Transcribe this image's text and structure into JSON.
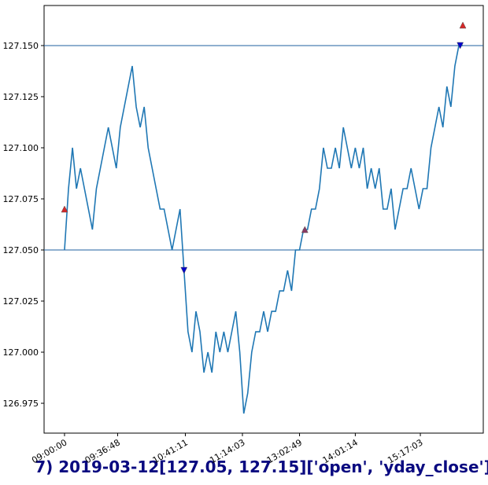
{
  "chart_data": {
    "type": "line",
    "title": "7) 2019-03-12[127.05, 127.15]['open', 'yday_close']",
    "x": [
      0,
      3,
      6,
      9,
      12,
      15,
      18,
      21,
      24,
      27,
      30,
      33,
      36,
      39,
      42,
      45,
      48,
      51,
      54,
      57,
      60,
      63,
      66,
      69,
      72,
      75,
      78,
      81,
      84,
      87,
      90,
      93,
      96,
      99,
      102,
      105,
      108,
      111,
      114,
      117,
      120,
      123,
      126,
      129,
      132,
      135,
      138,
      141,
      144,
      147,
      150,
      153,
      156,
      159,
      162,
      165,
      168,
      171,
      174,
      177,
      180,
      183,
      186,
      189,
      192,
      195,
      198,
      201,
      204,
      207,
      210,
      213,
      216,
      219,
      222,
      225,
      228,
      231,
      234,
      237,
      240,
      243,
      246,
      249,
      252,
      255,
      258,
      261,
      264,
      267,
      270,
      273,
      276,
      279,
      282,
      285,
      288,
      291,
      294,
      297,
      300
    ],
    "series": [
      {
        "color": "#1f77b4",
        "values": [
          127.05,
          127.08,
          127.1,
          127.08,
          127.09,
          127.08,
          127.07,
          127.06,
          127.08,
          127.09,
          127.1,
          127.11,
          127.1,
          127.09,
          127.11,
          127.12,
          127.13,
          127.14,
          127.12,
          127.11,
          127.12,
          127.1,
          127.09,
          127.08,
          127.07,
          127.07,
          127.06,
          127.05,
          127.06,
          127.07,
          127.04,
          127.01,
          127.0,
          127.02,
          127.01,
          126.99,
          127.0,
          126.99,
          127.01,
          127.0,
          127.01,
          127.0,
          127.01,
          127.02,
          127.0,
          126.97,
          126.98,
          127.0,
          127.01,
          127.01,
          127.02,
          127.01,
          127.02,
          127.02,
          127.03,
          127.03,
          127.04,
          127.03,
          127.05,
          127.05,
          127.06,
          127.06,
          127.07,
          127.07,
          127.08,
          127.1,
          127.09,
          127.09,
          127.1,
          127.09,
          127.11,
          127.1,
          127.09,
          127.1,
          127.09,
          127.1,
          127.08,
          127.09,
          127.08,
          127.09,
          127.07,
          127.07,
          127.08,
          127.06,
          127.07,
          127.08,
          127.08,
          127.09,
          127.08,
          127.07,
          127.08,
          127.08,
          127.1,
          127.11,
          127.12,
          127.11,
          127.13,
          127.12,
          127.14,
          127.15,
          127.15
        ]
      }
    ],
    "markers": [
      {
        "x": 0,
        "y": 127.07,
        "color": "#d62728",
        "shape": "up"
      },
      {
        "x": 90,
        "y": 127.04,
        "color": "#0000cc",
        "shape": "down"
      },
      {
        "x": 181,
        "y": 127.06,
        "color": "#8b3a62",
        "shape": "up"
      },
      {
        "x": 298,
        "y": 127.15,
        "color": "#0000cc",
        "shape": "down"
      },
      {
        "x": 300,
        "y": 127.16,
        "color": "#d62728",
        "shape": "up"
      }
    ],
    "hlines": [
      127.05,
      127.15
    ],
    "hline_color": "#1f5f9f",
    "xlim": [
      -15.4,
      315.4
    ],
    "ylim": [
      126.9604,
      127.1696
    ],
    "xticks": [
      {
        "value": 0,
        "label": "09:00:00"
      },
      {
        "value": 40,
        "label": "09:36:48"
      },
      {
        "value": 91,
        "label": "10:41:11"
      },
      {
        "value": 134,
        "label": "11:14:03"
      },
      {
        "value": 177,
        "label": "13:02:49"
      },
      {
        "value": 219,
        "label": "14:01:14"
      },
      {
        "value": 268,
        "label": "15:17:03"
      }
    ],
    "yticks": [
      126.975,
      {
        "value": 127.0,
        "label": "127.000"
      },
      127.025,
      {
        "value": 127.05,
        "label": "127.050"
      },
      127.075,
      {
        "value": 127.1,
        "label": "127.100"
      },
      127.125,
      {
        "value": 127.15,
        "label": "127.150"
      }
    ]
  }
}
